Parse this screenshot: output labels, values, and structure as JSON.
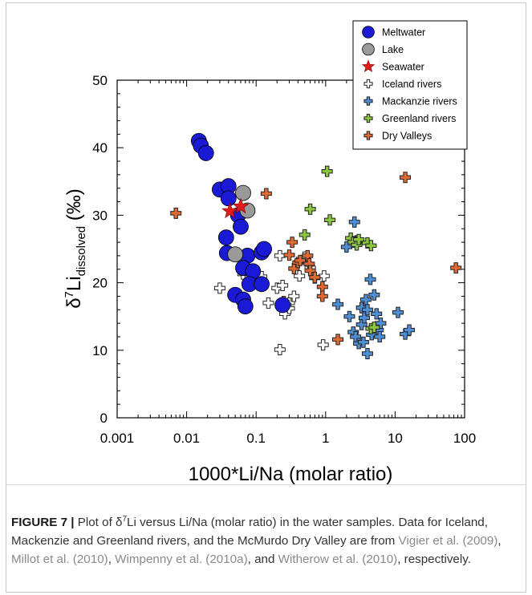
{
  "chart_data": {
    "type": "scatter",
    "xscale": "log",
    "xlim": [
      0.001,
      100
    ],
    "ylim": [
      0,
      50
    ],
    "x_ticks": [
      "0.001",
      "0.01",
      "0.1",
      "1",
      "10",
      "100"
    ],
    "y_ticks": [
      "0",
      "10",
      "20",
      "30",
      "40",
      "50"
    ],
    "xlabel": "1000*Li/Na (molar ratio)",
    "ylabel_main": "δ",
    "ylabel_sup": "7",
    "ylabel_li": "Li",
    "ylabel_sub": "dissolved",
    "ylabel_unit": " (‰)",
    "legend_position": "top-right",
    "series": [
      {
        "name": "Meltwater",
        "marker": "circle",
        "color": "#1a1ad6",
        "points": [
          [
            0.015,
            41.0
          ],
          [
            0.016,
            40.3
          ],
          [
            0.019,
            39.2
          ],
          [
            0.03,
            33.8
          ],
          [
            0.04,
            34.3
          ],
          [
            0.04,
            32.5
          ],
          [
            0.055,
            30.0
          ],
          [
            0.06,
            28.3
          ],
          [
            0.037,
            26.7
          ],
          [
            0.038,
            24.4
          ],
          [
            0.075,
            24.0
          ],
          [
            0.12,
            24.5
          ],
          [
            0.13,
            25.0
          ],
          [
            0.065,
            22.2
          ],
          [
            0.09,
            21.7
          ],
          [
            0.08,
            19.8
          ],
          [
            0.12,
            19.8
          ],
          [
            0.05,
            18.2
          ],
          [
            0.065,
            17.5
          ],
          [
            0.07,
            16.5
          ],
          [
            0.24,
            16.7
          ]
        ]
      },
      {
        "name": "Lake",
        "marker": "circle",
        "color": "#9a9a9a",
        "points": [
          [
            0.065,
            33.3
          ],
          [
            0.075,
            30.7
          ],
          [
            0.05,
            24.2
          ]
        ]
      },
      {
        "name": "Seawater",
        "marker": "star",
        "color": "#e01b1b",
        "points": [
          [
            0.042,
            30.6
          ],
          [
            0.06,
            31.3
          ]
        ]
      },
      {
        "name": "Iceland rivers",
        "marker": "plus",
        "color": "#ffffff",
        "points": [
          [
            0.03,
            19.2
          ],
          [
            0.065,
            21.3
          ],
          [
            0.08,
            22.0
          ],
          [
            0.12,
            20.9
          ],
          [
            0.15,
            17.0
          ],
          [
            0.2,
            19.2
          ],
          [
            0.22,
            24.0
          ],
          [
            0.22,
            10.1
          ],
          [
            0.24,
            19.6
          ],
          [
            0.26,
            15.4
          ],
          [
            0.3,
            17.0
          ],
          [
            0.3,
            16.2
          ],
          [
            0.35,
            18.0
          ],
          [
            0.42,
            21.0
          ],
          [
            0.5,
            23.8
          ],
          [
            0.6,
            22.2
          ],
          [
            0.7,
            20.7
          ],
          [
            0.95,
            21.0
          ],
          [
            0.92,
            10.8
          ]
        ]
      },
      {
        "name": "Mackanzie rivers",
        "marker": "plus",
        "color": "#4f8fd6",
        "points": [
          [
            1.5,
            16.8
          ],
          [
            2.0,
            25.3
          ],
          [
            2.6,
            29.0
          ],
          [
            2.8,
            26.2
          ],
          [
            2.2,
            15.0
          ],
          [
            2.5,
            12.7
          ],
          [
            2.7,
            12.0
          ],
          [
            3.0,
            11.0
          ],
          [
            3.3,
            13.8
          ],
          [
            3.3,
            16.3
          ],
          [
            3.5,
            11.2
          ],
          [
            3.8,
            17.5
          ],
          [
            3.6,
            14.8
          ],
          [
            4.0,
            16.0
          ],
          [
            4.0,
            9.5
          ],
          [
            4.4,
            20.5
          ],
          [
            4.6,
            12.3
          ],
          [
            5.0,
            18.2
          ],
          [
            5.4,
            15.4
          ],
          [
            5.7,
            13.0
          ],
          [
            6.0,
            12.0
          ],
          [
            6.2,
            14.0
          ],
          [
            11,
            15.6
          ],
          [
            14,
            12.4
          ],
          [
            16,
            13.0
          ]
        ]
      },
      {
        "name": "Greenland rivers",
        "marker": "plus",
        "color": "#8cc63f",
        "points": [
          [
            0.04,
            24.5
          ],
          [
            0.5,
            27.1
          ],
          [
            0.6,
            30.9
          ],
          [
            1.05,
            36.5
          ],
          [
            1.15,
            29.3
          ],
          [
            2.3,
            26.6
          ],
          [
            2.5,
            26.0
          ],
          [
            2.8,
            25.6
          ],
          [
            3.0,
            26.4
          ],
          [
            4.0,
            25.9
          ],
          [
            4.5,
            25.5
          ],
          [
            4.5,
            13.2
          ],
          [
            5.0,
            13.4
          ]
        ]
      },
      {
        "name": "Dry Valleys",
        "marker": "plus",
        "color": "#e06a33",
        "points": [
          [
            0.007,
            30.3
          ],
          [
            0.14,
            33.2
          ],
          [
            0.25,
            17.2
          ],
          [
            0.3,
            24.1
          ],
          [
            0.33,
            26.0
          ],
          [
            0.35,
            22.1
          ],
          [
            0.4,
            23.0
          ],
          [
            0.43,
            23.3
          ],
          [
            0.55,
            24.0
          ],
          [
            0.58,
            22.8
          ],
          [
            0.6,
            21.8
          ],
          [
            0.7,
            20.8
          ],
          [
            0.9,
            19.4
          ],
          [
            0.9,
            18.0
          ],
          [
            1.5,
            11.6
          ],
          [
            14,
            35.6
          ],
          [
            75,
            22.2
          ]
        ]
      }
    ]
  },
  "caption": {
    "figure_label": "FIGURE 7 |",
    "text1": " Plot of δ",
    "sup": "7",
    "text2": "Li versus Li/Na (molar ratio) in the water samples. Data for Iceland, Mackenzie and Greenland rivers, and the McMurdo Dry Valley are from ",
    "cite1": "Vigier et al. (2009)",
    "sep1": ", ",
    "cite2": "Millot et al. (2010)",
    "sep2": ", ",
    "cite3": "Wimpenny et al. (2010a)",
    "sep3": ", and ",
    "cite4": "Witherow et al. (2010)",
    "tail": ", respectively."
  }
}
